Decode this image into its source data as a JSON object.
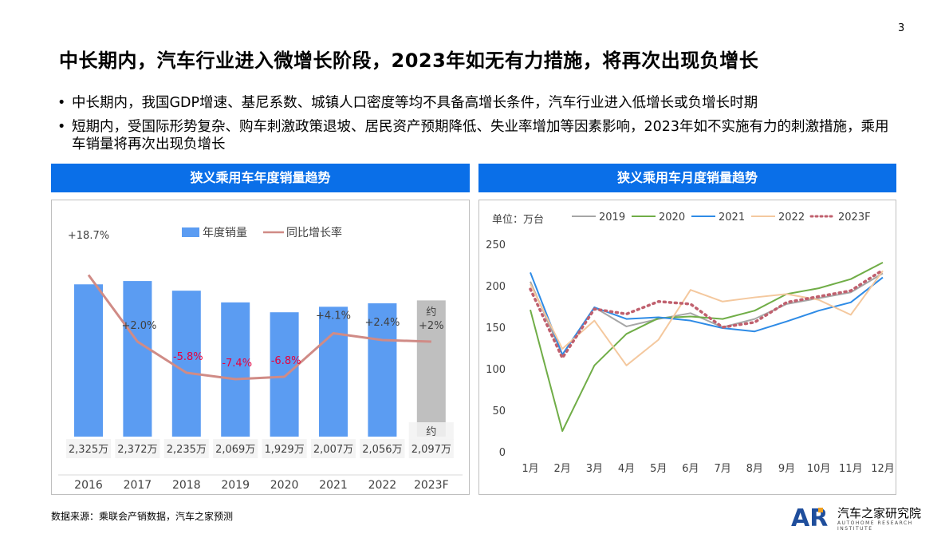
{
  "page_number": "3",
  "title": "中长期内，汽车行业进入微增长阶段，2023年如无有力措施，将再次出现负增长",
  "bullets": [
    "中长期内，我国GDP增速、基尼系数、城镇人口密度等均不具备高增长条件，汽车行业进入低增长或负增长时期",
    "短期内，受国际形势复杂、购车刺激政策退坡、居民资产预期降低、失业率增加等因素影响，2023年如不实施有力的刺激措施，乘用车销量将再次出现负增长"
  ],
  "bullet_marker": "•",
  "left_panel": {
    "header": "狭义乘用车年度销量趋势"
  },
  "right_panel": {
    "header": "狭义乘用车月度销量趋势"
  },
  "source": "数据来源：乘联会产销数据，汽车之家预测",
  "logo": {
    "mark": "AR",
    "name": "汽车之家研究院",
    "sub": "AUTOHOME RESEARCH INSTITUTE"
  },
  "colors": {
    "header_bg": "#0a6fe8",
    "bar": "#5b9cf2",
    "bar_forecast": "#bfbfbf",
    "growth_line": "#d08b86",
    "negative_label": "#e8003d"
  },
  "chart_data": [
    {
      "type": "bar",
      "categories": [
        "2016",
        "2017",
        "2018",
        "2019",
        "2020",
        "2021",
        "2022",
        "2023F"
      ],
      "series": [
        {
          "name": "年度销量",
          "values": [
            2325,
            2372,
            2235,
            2069,
            1929,
            2007,
            2056,
            2097
          ],
          "labels": [
            "2,325万",
            "2,372万",
            "2,235万",
            "2,069万",
            "1,929万",
            "2,007万",
            "2,056万",
            "2,097万"
          ],
          "forecast_prefix": "约"
        },
        {
          "name": "同比增长率",
          "type": "line",
          "values": [
            18.7,
            2.0,
            -5.8,
            -7.4,
            -6.8,
            4.1,
            2.4,
            2.0
          ],
          "labels": [
            "+18.7%",
            "+2.0%",
            "-5.8%",
            "-7.4%",
            "-6.8%",
            "+4.1%",
            "+2.4%",
            "+2%"
          ],
          "forecast_prefix": "约"
        }
      ],
      "legend": "top"
    },
    {
      "type": "line",
      "unit_label": "单位：万台",
      "categories": [
        "1月",
        "2月",
        "3月",
        "4月",
        "5月",
        "6月",
        "7月",
        "8月",
        "9月",
        "10月",
        "11月",
        "12月"
      ],
      "yticks": [
        0,
        50,
        100,
        150,
        200,
        250
      ],
      "ylim": [
        0,
        250
      ],
      "series": [
        {
          "name": "2019",
          "color": "#a6a6a6",
          "dash": "solid",
          "values": [
            205,
            117,
            174,
            151,
            160,
            167,
            150,
            160,
            178,
            185,
            192,
            215
          ]
        },
        {
          "name": "2020",
          "color": "#70ad47",
          "dash": "solid",
          "values": [
            171,
            25,
            104,
            142,
            161,
            163,
            160,
            170,
            190,
            197,
            208,
            228
          ]
        },
        {
          "name": "2021",
          "color": "#2e8be6",
          "dash": "solid",
          "values": [
            216,
            117,
            174,
            160,
            162,
            158,
            149,
            145,
            157,
            170,
            180,
            210
          ]
        },
        {
          "name": "2022",
          "color": "#f4c89e",
          "dash": "solid",
          "values": [
            202,
            124,
            158,
            104,
            135,
            195,
            181,
            186,
            190,
            183,
            165,
            218
          ]
        },
        {
          "name": "2023F",
          "color": "#c0606e",
          "dash": "dot",
          "values": [
            196,
            113,
            172,
            166,
            181,
            178,
            150,
            156,
            180,
            187,
            194,
            219
          ]
        }
      ],
      "legend": "top"
    }
  ]
}
